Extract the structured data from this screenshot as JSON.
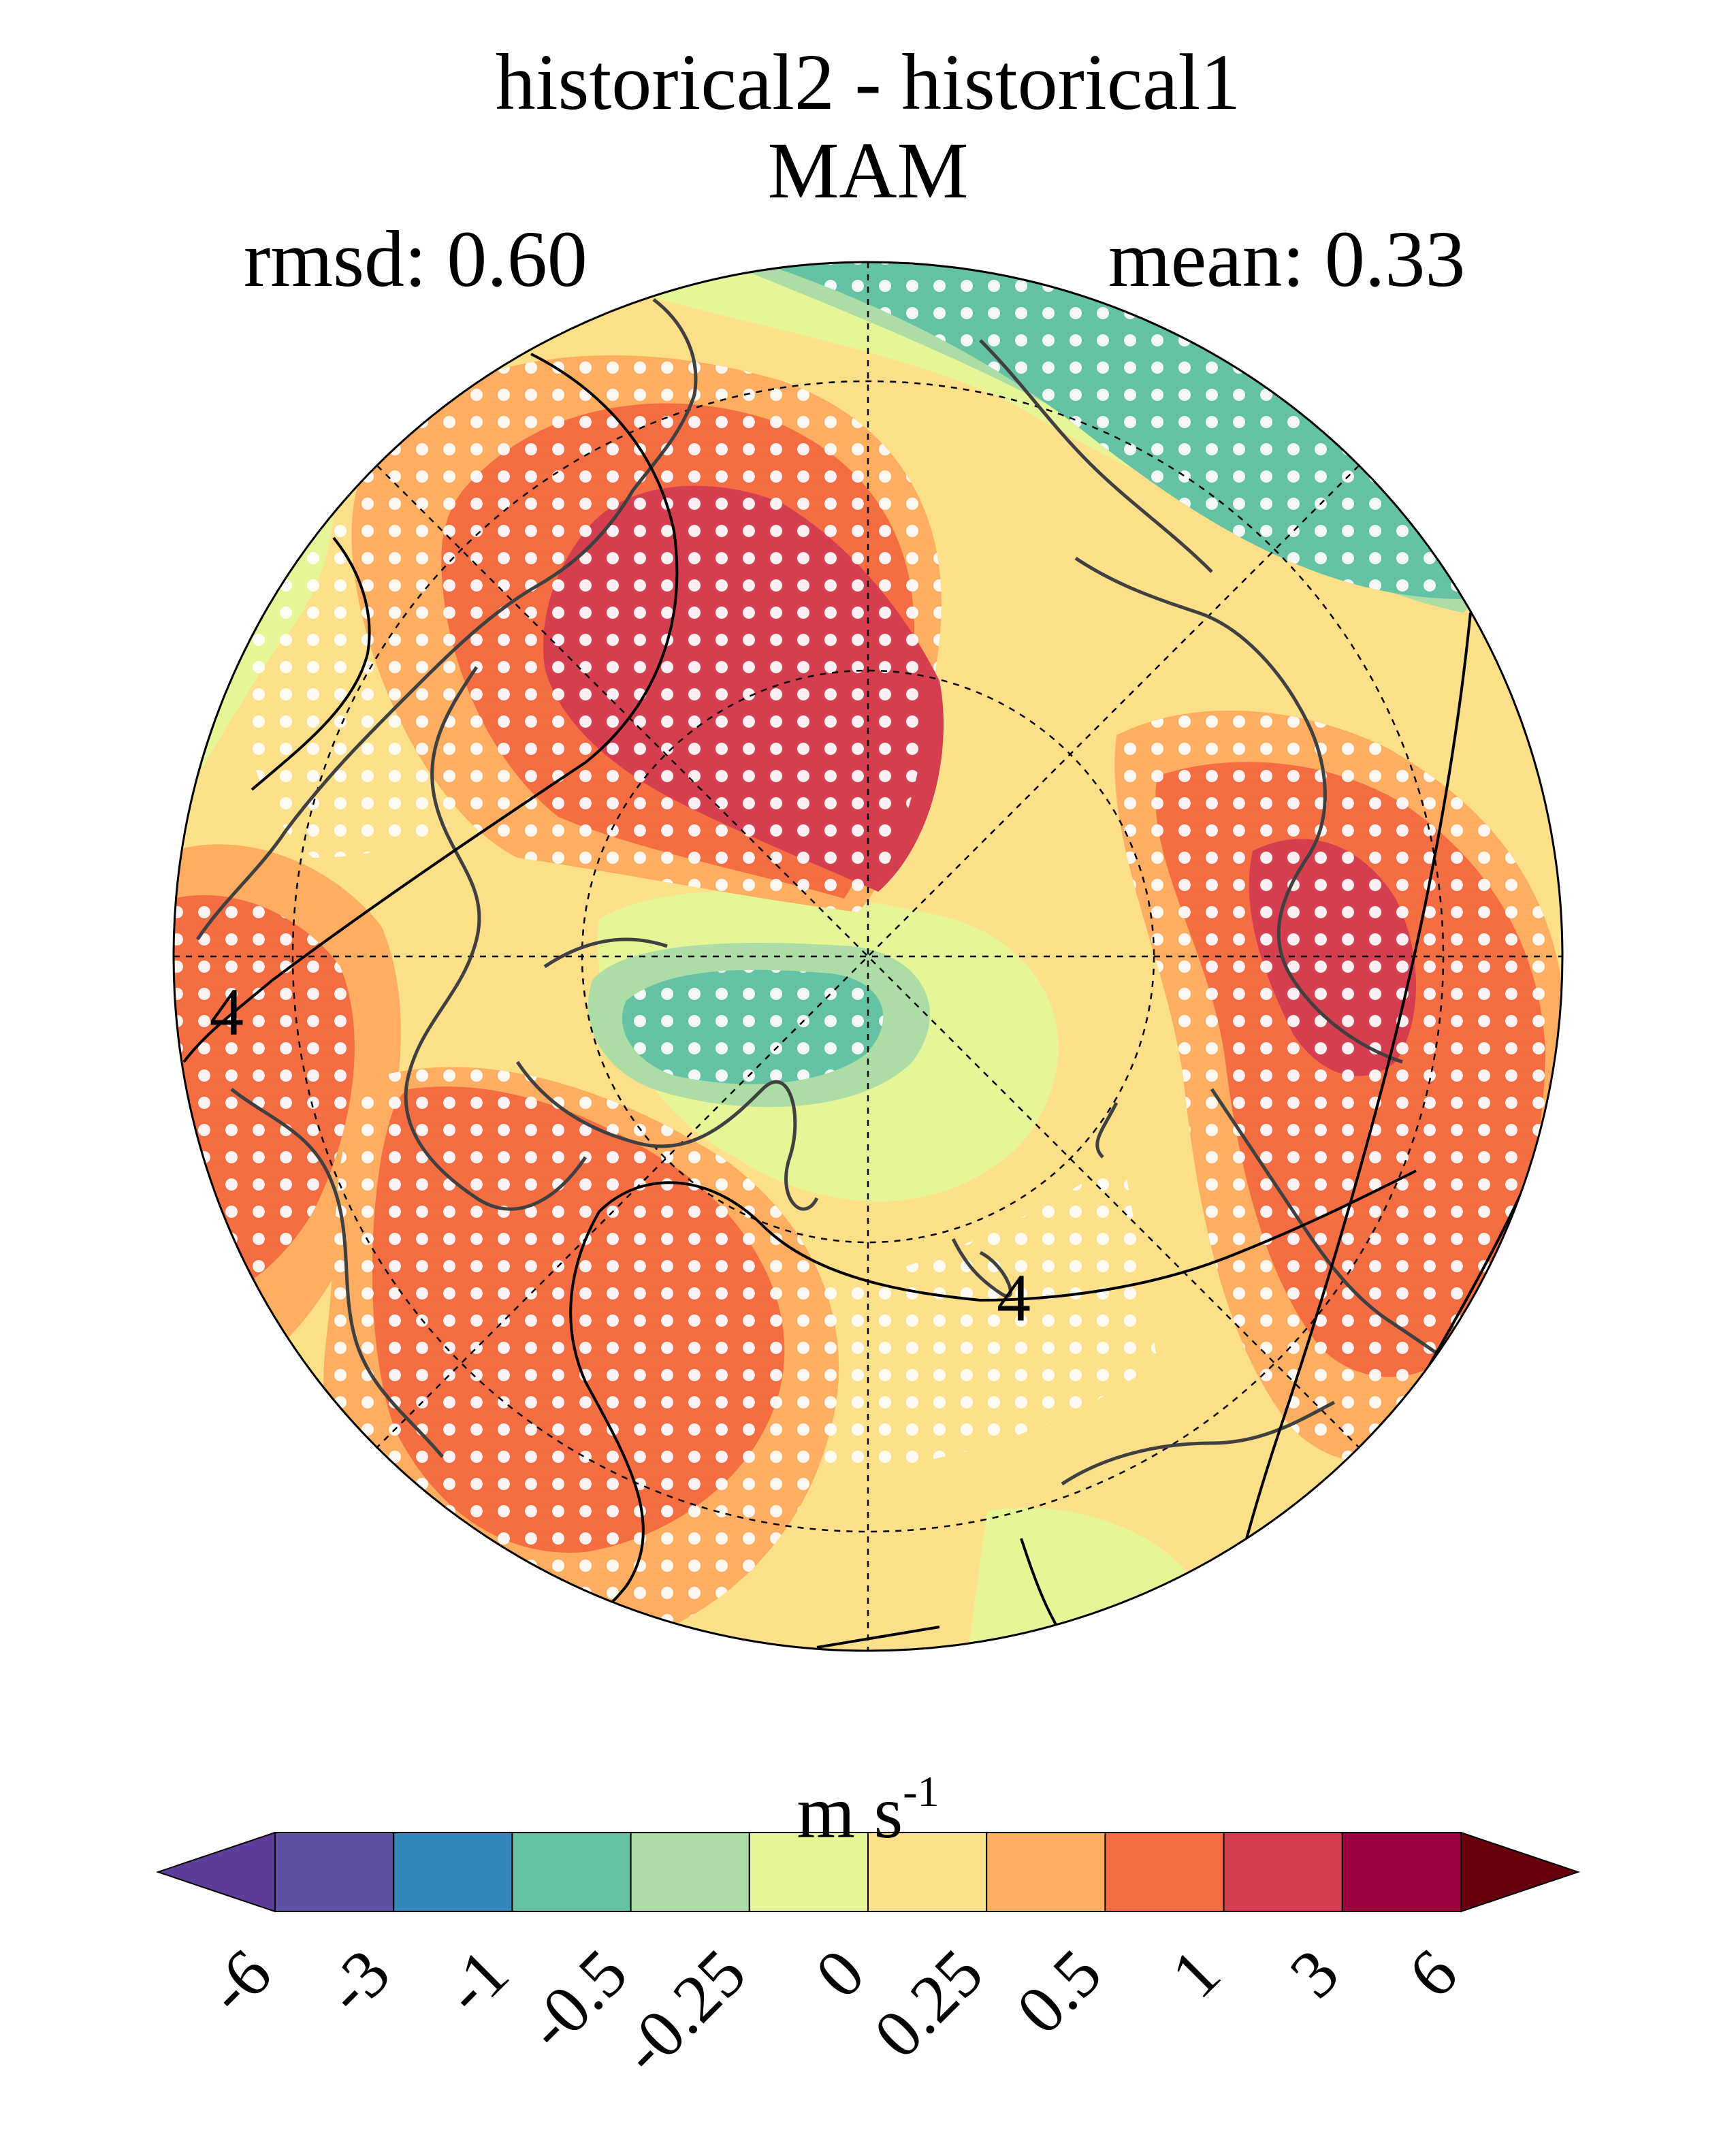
{
  "title": "historical2 - historical1",
  "season": "MAM",
  "rmsd_label": "rmsd: 0.60",
  "mean_label": "mean: 0.33",
  "contour_labels": [
    "4",
    "4"
  ],
  "colorbar": {
    "unit_base": "m s",
    "unit_exp": "-1",
    "ticks": [
      "-6",
      "-3",
      "-1",
      "-0.5",
      "-0.25",
      "0",
      "0.25",
      "0.5",
      "1",
      "3",
      "6"
    ],
    "colors": [
      "#5e3c99",
      "#5e4fa2",
      "#3288bd",
      "#66c2a5",
      "#abdda4",
      "#e6f598",
      "#fee08b",
      "#fdae61",
      "#f46d43",
      "#d53e4f",
      "#9e0142",
      "#67000d"
    ]
  },
  "palette": {
    "light_green": "#e6f598",
    "pale_green": "#abdda4",
    "teal": "#66c2a5",
    "yellow": "#fee08b",
    "orange": "#fdae61",
    "red_orange": "#f46d43",
    "crimson": "#d53e4f"
  }
}
